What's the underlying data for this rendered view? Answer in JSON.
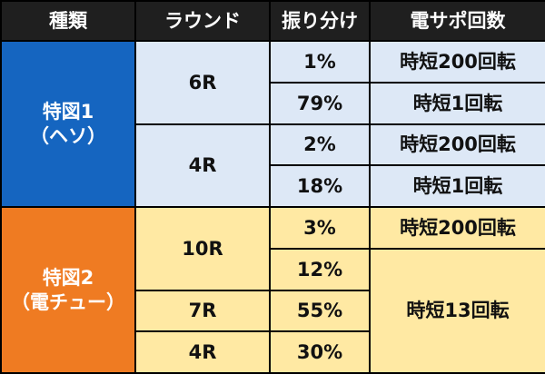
{
  "headers": [
    "種類",
    "ラウンド",
    "振り分け",
    "電サポ回数"
  ],
  "groups": [
    {
      "title": "特図1",
      "subtitle": "（ヘソ）",
      "color": "#1565c0",
      "rounds": [
        "6R",
        "4R"
      ],
      "allocations": [
        "1%",
        "79%",
        "2%",
        "18%"
      ],
      "support": [
        "時短200回転",
        "時短1回転",
        "時短200回転",
        "時短1回転"
      ]
    },
    {
      "title": "特図2",
      "subtitle": "（電チュー）",
      "color": "#ef7b22",
      "rounds": [
        "10R",
        "7R",
        "4R"
      ],
      "allocations": [
        "3%",
        "12%",
        "55%",
        "30%"
      ],
      "support": [
        "時短200回転",
        "時短13回転"
      ]
    }
  ],
  "colors": {
    "header_bg": "#1f1f1f",
    "light_blue": "#dde8f6",
    "light_yellow": "#ffe9a3"
  }
}
